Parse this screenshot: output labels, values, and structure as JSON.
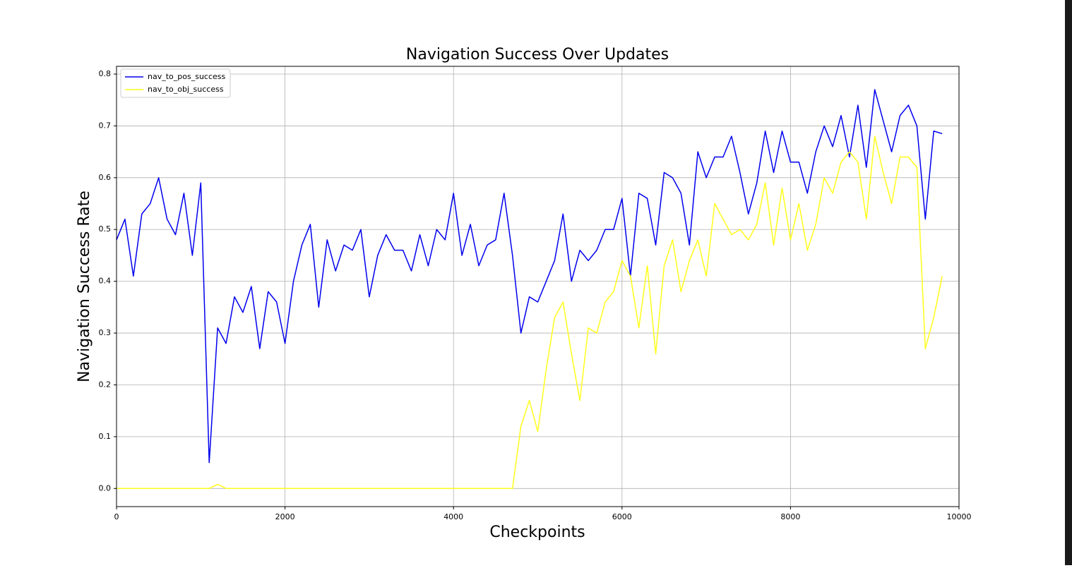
{
  "chart_data": {
    "type": "line",
    "title": "Navigation Success Over Updates",
    "xlabel": "Checkpoints",
    "ylabel": "Navigation Success Rate",
    "x": [
      0,
      100,
      200,
      300,
      400,
      500,
      600,
      700,
      800,
      900,
      1000,
      1100,
      1200,
      1300,
      1400,
      1500,
      1600,
      1700,
      1800,
      1900,
      2000,
      2100,
      2200,
      2300,
      2400,
      2500,
      2600,
      2700,
      2800,
      2900,
      3000,
      3100,
      3200,
      3300,
      3400,
      3500,
      3600,
      3700,
      3800,
      3900,
      4000,
      4100,
      4200,
      4300,
      4400,
      4500,
      4600,
      4700,
      4800,
      4900,
      5000,
      5100,
      5200,
      5300,
      5400,
      5500,
      5600,
      5700,
      5800,
      5900,
      6000,
      6100,
      6200,
      6300,
      6400,
      6500,
      6600,
      6700,
      6800,
      6900,
      7000,
      7100,
      7200,
      7300,
      7400,
      7500,
      7600,
      7700,
      7800,
      7900,
      8000,
      8100,
      8200,
      8300,
      8400,
      8500,
      8600,
      8700,
      8800,
      8900,
      9000,
      9100,
      9200,
      9300,
      9400,
      9500,
      9600,
      9700,
      9800
    ],
    "series": [
      {
        "name": "nav_to_pos_success",
        "color": "#0000ee",
        "values": [
          0.48,
          0.52,
          0.41,
          0.53,
          0.55,
          0.6,
          0.52,
          0.49,
          0.57,
          0.45,
          0.59,
          0.05,
          0.31,
          0.28,
          0.37,
          0.34,
          0.39,
          0.27,
          0.38,
          0.36,
          0.28,
          0.4,
          0.47,
          0.51,
          0.35,
          0.48,
          0.42,
          0.47,
          0.46,
          0.5,
          0.37,
          0.45,
          0.49,
          0.46,
          0.46,
          0.42,
          0.49,
          0.43,
          0.5,
          0.48,
          0.57,
          0.45,
          0.51,
          0.43,
          0.47,
          0.48,
          0.57,
          0.45,
          0.3,
          0.37,
          0.36,
          0.4,
          0.44,
          0.53,
          0.4,
          0.46,
          0.44,
          0.46,
          0.5,
          0.5,
          0.56,
          0.41,
          0.57,
          0.56,
          0.47,
          0.61,
          0.6,
          0.57,
          0.47,
          0.65,
          0.6,
          0.64,
          0.64,
          0.68,
          0.61,
          0.53,
          0.59,
          0.69,
          0.61,
          0.69,
          0.63,
          0.63,
          0.57,
          0.65,
          0.7,
          0.66,
          0.72,
          0.64,
          0.74,
          0.62,
          0.77,
          0.71,
          0.65,
          0.72,
          0.74,
          0.7,
          0.52,
          0.69,
          0.685
        ]
      },
      {
        "name": "nav_to_obj_success",
        "color": "#ffff1a",
        "values": [
          0,
          0,
          0,
          0,
          0,
          0,
          0,
          0,
          0,
          0,
          0,
          0,
          0.008,
          0,
          0,
          0,
          0,
          0,
          0,
          0,
          0,
          0,
          0,
          0,
          0,
          0,
          0,
          0,
          0,
          0,
          0,
          0,
          0,
          0,
          0,
          0,
          0,
          0,
          0,
          0,
          0,
          0,
          0,
          0,
          0,
          0,
          0,
          0,
          0.12,
          0.17,
          0.11,
          0.23,
          0.33,
          0.36,
          0.26,
          0.17,
          0.31,
          0.3,
          0.36,
          0.38,
          0.44,
          0.41,
          0.31,
          0.43,
          0.26,
          0.43,
          0.48,
          0.38,
          0.44,
          0.48,
          0.41,
          0.55,
          0.52,
          0.49,
          0.5,
          0.48,
          0.51,
          0.59,
          0.47,
          0.58,
          0.48,
          0.55,
          0.46,
          0.51,
          0.6,
          0.57,
          0.63,
          0.65,
          0.63,
          0.52,
          0.68,
          0.61,
          0.55,
          0.64,
          0.64,
          0.62,
          0.27,
          0.33,
          0.41
        ]
      }
    ],
    "xlim": [
      0,
      10000
    ],
    "ylim": [
      -0.035,
      0.815
    ],
    "xticks": [
      0,
      2000,
      4000,
      6000,
      8000,
      10000
    ],
    "yticks": [
      {
        "value": 0,
        "label": "0.0"
      },
      0.1,
      0.2,
      0.3,
      0.4,
      0.5,
      0.6,
      0.7,
      0.8
    ],
    "grid": true,
    "legend": "upper left"
  }
}
